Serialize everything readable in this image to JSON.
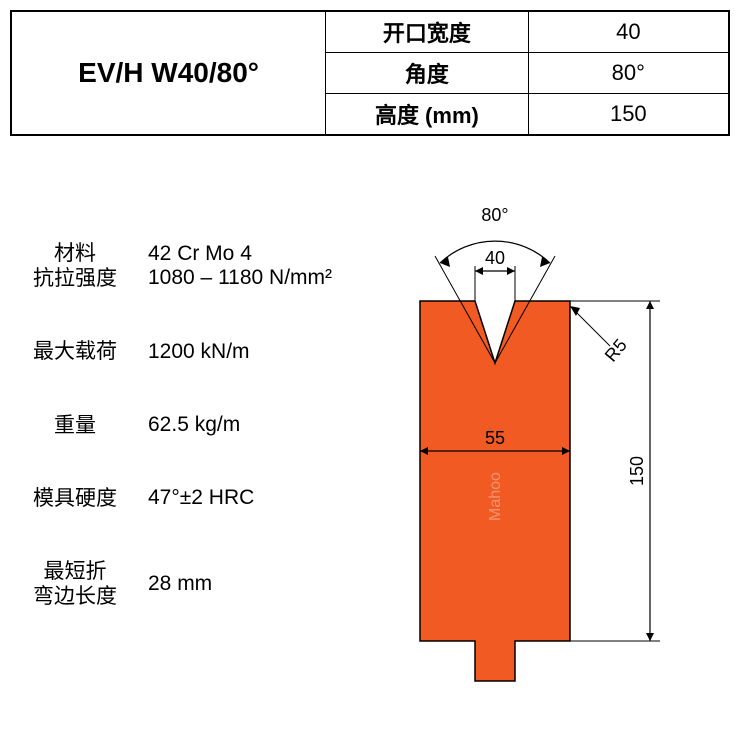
{
  "header": {
    "title": "EV/H W40/80°",
    "rows": [
      {
        "label": "开口宽度",
        "value": "40"
      },
      {
        "label": "角度",
        "value": "80°"
      },
      {
        "label": "高度 (mm)",
        "value": "150"
      }
    ]
  },
  "specs": [
    {
      "label": "材料\n抗拉强度",
      "value": "42 Cr Mo 4\n1080 – 1180 N/mm²"
    },
    {
      "label": "最大载荷",
      "value": "1200 kN/m"
    },
    {
      "label": "重量",
      "value": "62.5 kg/m"
    },
    {
      "label": "模具硬度",
      "value": "47°±2 HRC"
    },
    {
      "label": "最短折\n弯边长度",
      "value": "28 mm"
    }
  ],
  "diagram": {
    "angle_label": "80°",
    "opening_label": "40",
    "width_label": "55",
    "height_label": "150",
    "radius_label": "R5",
    "watermark": "Mahoo",
    "fill_color": "#f15a22",
    "stroke_color": "#000000",
    "dim_text_size": 18,
    "die_body_width": 150,
    "die_body_height": 380,
    "v_opening": 110,
    "v_depth": 62,
    "foot_width": 40,
    "foot_height": 40
  }
}
